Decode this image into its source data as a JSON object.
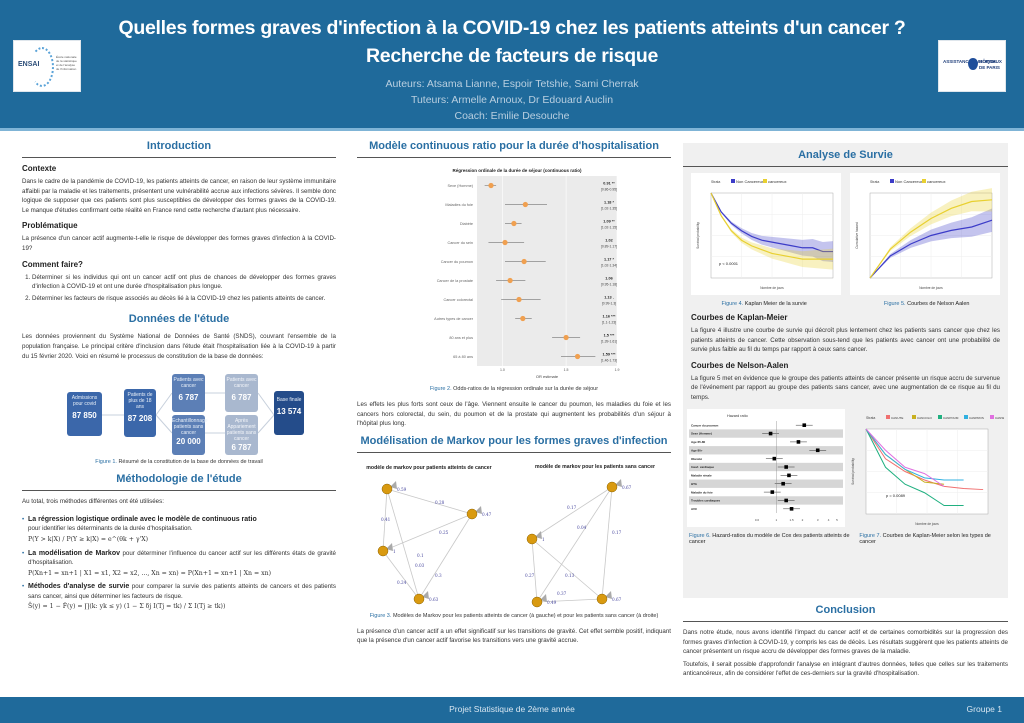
{
  "header": {
    "title": "Quelles formes graves d'infection à la COVID-19 chez les patients atteints d'un cancer ? Recherche de facteurs de risque",
    "authors": "Auteurs: Atsama Lianne, Espoir Tetshie, Sami Cherrak",
    "tutors": "Tuteurs: Armelle Arnoux, Dr Edouard Auclin",
    "coach": "Coach: Emilie Desouche",
    "logo_left": {
      "name": "ENSAI",
      "tagline": "École nationale de la statistique et de l'analyse de l'information"
    },
    "logo_right": {
      "left": "ASSISTANCE PUBLIQUE",
      "right": "HÔPITAUX DE PARIS"
    }
  },
  "colors": {
    "primary": "#1f6a9b",
    "accent_title": "#2a6fa3",
    "orange": "#f0a050",
    "navy": "#3c3cc8",
    "yellow": "#e8d030"
  },
  "intro": {
    "title": "Introduction",
    "context_h": "Contexte",
    "context": "Dans le cadre de la pandémie de COVID-19, les patients atteints de cancer, en raison de leur système immunitaire affaibli par la maladie et les traitements, présentent une vulnérabilité accrue aux infections sévères. Il semble donc logique de supposer que ces patients sont plus susceptibles de développer des formes graves de la COVID-19. Le manque d'études confirmant cette réalité en France rend cette recherche d'autant plus nécessaire.",
    "problem_h": "Problématique",
    "problem": "La présence d'un cancer actif augmente-t-elle le risque de développer des formes graves d'infection à la COVID-19?",
    "how_h": "Comment faire?",
    "how": [
      "Déterminer si les individus qui ont un cancer actif ont plus de chances de développer des formes graves d'infection à COVID-19 et ont une durée d'hospitalisation plus longue.",
      "Déterminer les facteurs de risque associés au décès lié à la COVID-19 chez les patients atteints de cancer."
    ]
  },
  "data_section": {
    "title": "Données de l'étude",
    "text": "Les données proviennent du Système National de Données de Santé (SNDS), couvrant l'ensemble de la population française. Le principal critère d'inclusion dans l'étude était l'hospitalisation liée à la COVID-19 à partir du 15 février 2020. Voici en résumé le processus de constitution de la base de données:",
    "flow": [
      {
        "label": "Admissions pour covid",
        "value": "87 850"
      },
      {
        "label": "Patients de plus de 18 ans",
        "value": "87 208"
      },
      {
        "label": "Patients avec cancer",
        "value": "6 787"
      },
      {
        "label": "Echantillonnage patients sans cancer",
        "value": "20 000"
      },
      {
        "label": "Patients avec cancer",
        "value": "6 787"
      },
      {
        "label": "Après Appariement patients sans cancer",
        "value": "6 787"
      },
      {
        "label": "Base finale",
        "value": "13 574"
      }
    ],
    "caption_fig": "Figure 1.",
    "caption": "Résumé de la constitution de la base de données de travail"
  },
  "methods": {
    "title": "Méthodologie de l'étude",
    "intro": "Au total, trois méthodes différentes ont été utilisées:",
    "items": [
      {
        "bold": "La régression logistique ordinale avec le modèle de continuous ratio",
        "text": "pour identifier les déterminants de la durée d'hospitalisation.",
        "formula": "P(Y > k|X) / P(Y ≥ k|X) = e^(θk + γ'X)"
      },
      {
        "bold": "La modélisation de Markov",
        "text": "pour déterminer l'influence du cancer actif sur les différents états de gravité d'hospitalisation.",
        "formula": "P(Xn+1 = xn+1 | X1 = x1, X2 = x2, ..., Xn = xn) = P(Xn+1 = xn+1 | Xn = xn)"
      },
      {
        "bold": "Méthodes d'analyse de survie",
        "text": "pour comparer la survie des patients atteints de cancers et des patients sans cancer, ainsi que déterminer les facteurs de risque.",
        "formula": "Ŝ(y) = 1 − F̂(y) = ∏(k: yk ≤ y) (1 − Σ δj I(Tj = tk) / Σ I(Tj ≥ tk))"
      }
    ]
  },
  "cr_model": {
    "title": "Modèle continuous ratio pour la durée d'hospitalisation",
    "caption_fig": "Figure 2.",
    "caption": "Odds-ratios de la régression ordinale sur la durée de séjour",
    "text": "Les effets les plus forts sont ceux de l'âge. Viennent ensuite le cancer du poumon, les maladies du foie et les cancers hors colorectal, du sein, du poumon et de la prostate qui augmentent les probabilités d'un séjour à l'hôpital plus long."
  },
  "chart_data": [
    {
      "type": "scatter",
      "title": "Régression ordinale de la durée de séjour (continuous ratio)",
      "xlabel": "OR estimate",
      "x_ticks": [
        "1.0",
        "1.5",
        "1.9"
      ],
      "xlim": [
        0.8,
        1.9
      ],
      "categories": [
        "Sexe (Homme)",
        "Maladies du foie",
        "Diabète",
        "Cancer du sein",
        "Cancer du poumon",
        "Cancer de la prostate",
        "Cancer colorectal",
        "Autres types de cancer",
        "80 ans et plus",
        "65 à 80 ans"
      ],
      "values": [
        0.91,
        1.18,
        1.09,
        1.02,
        1.17,
        1.06,
        1.13,
        1.16,
        1.5,
        1.59
      ],
      "ci_low": [
        0.86,
        1.02,
        1.02,
        0.89,
        1.02,
        0.95,
        0.99,
        1.1,
        1.39,
        1.46
      ],
      "ci_high": [
        0.95,
        1.35,
        1.15,
        1.17,
        1.34,
        1.18,
        1.3,
        1.23,
        1.61,
        1.73
      ],
      "labels": [
        "0.91 **",
        "1.18 *",
        "1.09 **",
        "1.02",
        "1.17 *",
        "1.06",
        "1.13 .",
        "1.16 ***",
        "1.5 ***",
        "1.59 ***"
      ],
      "ci_labels": [
        "[0.86-0.95]",
        "[1.02-1.35]",
        "[1.02-1.15]",
        "[0.89-1.17]",
        "[1.02-1.34]",
        "[0.95-1.18]",
        "[0.99-1.3]",
        "[1.1-1.23]",
        "[1.39-1.61]",
        "[1.46-1.73]"
      ]
    },
    {
      "type": "line",
      "title": "Kaplan-Meier de la survie",
      "legend_title": "Strata",
      "series": [
        {
          "name": "Non Cancereux",
          "x": [
            0,
            10,
            20,
            30,
            40,
            50,
            60,
            70,
            80,
            90,
            100,
            110,
            120
          ],
          "y": [
            1.0,
            0.9,
            0.84,
            0.8,
            0.77,
            0.75,
            0.74,
            0.73,
            0.72,
            0.71,
            0.71,
            0.69,
            0.69
          ]
        },
        {
          "name": "cancereux",
          "x": [
            0,
            10,
            20,
            30,
            40,
            50,
            60,
            70,
            80,
            90,
            100,
            110,
            120
          ],
          "y": [
            1.0,
            0.88,
            0.8,
            0.75,
            0.72,
            0.7,
            0.68,
            0.67,
            0.66,
            0.65,
            0.65,
            0.65,
            0.65
          ]
        }
      ],
      "annotation": "p < 0.0001",
      "xlabel": "Nombre de jours",
      "ylabel": "Survival probability",
      "ylim": [
        0.55,
        1.0
      ],
      "xlim": [
        0,
        120
      ]
    },
    {
      "type": "line",
      "title": "Courbes de Nelson-Aalen",
      "legend_title": "Strata",
      "series": [
        {
          "name": "Non Cancereux",
          "x": [
            0,
            20,
            40,
            60,
            80,
            100,
            120
          ],
          "y": [
            0.0,
            0.13,
            0.2,
            0.25,
            0.28,
            0.3,
            0.34
          ]
        },
        {
          "name": "cancereux",
          "x": [
            0,
            20,
            40,
            60,
            80,
            100,
            120
          ],
          "y": [
            0.0,
            0.17,
            0.27,
            0.35,
            0.41,
            0.45,
            0.46
          ]
        }
      ],
      "xlabel": "Nombre de jours",
      "ylabel": "Cumulative hazard",
      "xlim": [
        0,
        120
      ]
    },
    {
      "type": "scatter",
      "title": "Hazard ratio",
      "categories": [
        "Cancer du poumon",
        "Sexe (Homme)",
        "Age 65-80",
        "Age 80+",
        "Obésité",
        "Insuf. cardiaque",
        "Maladie rénale",
        "HTA",
        "Maladie du foie",
        "Troubles cardiaques",
        "AVC"
      ],
      "values": [
        2.1,
        0.86,
        1.8,
        3.0,
        0.95,
        1.3,
        1.4,
        1.2,
        0.9,
        1.3,
        1.5
      ],
      "xlim": [
        0.6,
        5
      ],
      "x_ticks": [
        "0.6",
        "1",
        "1.5",
        "2",
        "3",
        "4",
        "5"
      ]
    },
    {
      "type": "line",
      "title": "Courbes de Kaplan-Meier selon les types de cancer",
      "legend_title": "Strata",
      "series": [
        {
          "name": "CANUTE",
          "color": "#f07070",
          "x": [
            0,
            20,
            40,
            60,
            80,
            100,
            120
          ],
          "y": [
            1.0,
            0.86,
            0.8,
            0.76,
            0.73,
            0.72,
            0.715
          ]
        },
        {
          "name": "CANCOLO",
          "color": "#c8b020",
          "x": [
            0,
            20,
            40,
            60,
            80
          ],
          "y": [
            1.0,
            0.88,
            0.81,
            0.75,
            0.74
          ]
        },
        {
          "name": "CANPOUM",
          "color": "#20b080",
          "x": [
            0,
            20,
            40,
            60,
            80,
            100
          ],
          "y": [
            1.0,
            0.82,
            0.74,
            0.7,
            0.64,
            0.64
          ]
        },
        {
          "name": "CANPROS",
          "color": "#30b0e0",
          "x": [
            0,
            20,
            40,
            60,
            80,
            100
          ],
          "y": [
            1.0,
            0.88,
            0.81,
            0.77,
            0.76,
            0.76
          ]
        },
        {
          "name": "CANSEIP",
          "color": "#e070e0",
          "x": [
            0,
            20,
            40,
            60,
            80
          ],
          "y": [
            1.0,
            0.9,
            0.82,
            0.79,
            0.73
          ]
        }
      ],
      "annotation": "p = 0.0089",
      "xlabel": "Nombre de jours",
      "ylabel": "Survival probability",
      "ylim": [
        0.6,
        1.0
      ],
      "xlim": [
        0,
        125
      ]
    }
  ],
  "markov": {
    "title": "Modélisation de Markov pour les formes graves d'infection",
    "left_title": "modèle de markov pour patients atteints de cancer",
    "right_title": "modèle de markov pour les patients sans cancer",
    "left_nodes": [
      {
        "label": "standard",
        "self": "0.59"
      },
      {
        "label": "oxygénothérapie",
        "self": "0.47"
      },
      {
        "label": "décès",
        "self": "1"
      },
      {
        "label": "réanimation",
        "self": "0.63"
      }
    ],
    "left_edges": [
      "0.41",
      "0.28",
      "0.25",
      "0.03",
      "0.24",
      "0.3",
      "0.1"
    ],
    "right_nodes": [
      {
        "label": "standard",
        "self": "0.67"
      },
      {
        "label": "décès",
        "self": "1"
      },
      {
        "label": "réanimation",
        "self": "0.67"
      },
      {
        "label": "oxygénothérapie",
        "self": "0.49"
      }
    ],
    "right_edges": [
      "0.17",
      "0.04",
      "0.17",
      "0.13",
      "0.27",
      "0.37"
    ],
    "caption_fig": "Figure 3.",
    "caption": "Modèles de Markov pour les patients atteints de cancer (à gauche) et pour les patients sans cancer (à droite)",
    "text": "La présence d'un cancer actif a un effet significatif sur les transitions de gravité. Cet effet semble positif, indiquant que la présence d'un cancer actif favorise les transitions vers une gravité accrue."
  },
  "survival": {
    "title": "Analyse de Survie",
    "fig4_num": "Figure 4.",
    "fig4": "Kaplan Meier de la survie",
    "fig5_num": "Figure 5.",
    "fig5": "Courbes de Nelson Aalen",
    "km_h": "Courbes de Kaplan-Meier",
    "km_text": "La figure 4 illustre une courbe de survie qui décroît plus lentement chez les patients sans cancer que chez les patients atteints de cancer. Cette observation sous-tend que les patients avec cancer ont une probabilité de survie plus faible au fil du temps par rapport à ceux sans cancer.",
    "na_h": "Courbes de Nelson-Aalen",
    "na_text": "La figure 5 met en évidence que le groupe des patients atteints de cancer présente un risque accru de survenue de l'événement par rapport au groupe des patients sans cancer, avec une augmentation de ce risque au fil du temps.",
    "fig6_num": "Figure 6.",
    "fig6": "Hazard-ratios du modèle de Cox des patients atteints de cancer",
    "fig7_num": "Figure 7.",
    "fig7": "Courbes de Kaplan-Meier selon les types de cancer"
  },
  "conclusion": {
    "title": "Conclusion",
    "p1": "Dans notre étude, nous avons identifié l'impact du cancer actif et de certaines comorbidités sur la progression des formes graves d'infection à COVID-19, y compris les cas de décès. Les résultats suggèrent que les patients atteints de cancer présentent un risque accru de développer des formes graves de la maladie.",
    "p2": "Toutefois, il serait possible d'approfondir l'analyse en intégrant d'autres données, telles que celles sur les traitements anticancéreux, afin de considérer l'effet de ces-derniers sur la gravité d'hospitalisation."
  },
  "footer": {
    "center": "Projet Statistique de 2ème année",
    "right": "Groupe 1"
  }
}
